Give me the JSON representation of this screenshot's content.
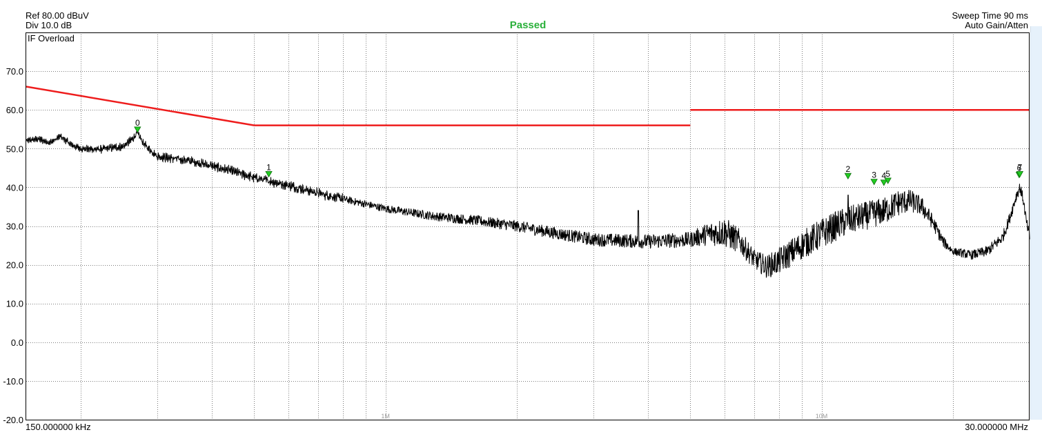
{
  "header": {
    "ref_level": "Ref 80.00 dBuV",
    "division": "Div 10.0 dB",
    "status": "Passed",
    "sweep_time": "Sweep Time 90 ms",
    "gain_mode": "Auto Gain/Atten",
    "overload_flag": "IF Overload"
  },
  "colors": {
    "trace": "#000000",
    "limit_line": "#ee1c1c",
    "marker_fill": "#22cc22",
    "status_pass": "#2ab03a",
    "grid": "#7a7a7a"
  },
  "chart_data": {
    "type": "line",
    "title": "",
    "xlabel": "",
    "ylabel": "",
    "x_scale": "log",
    "xlim": [
      150000,
      30000000
    ],
    "ylim": [
      -20,
      80
    ],
    "grid": true,
    "x_start_label": "150.000000 kHz",
    "x_stop_label": "30.000000 MHz",
    "x_decade_labels": [
      {
        "freq": 1000000,
        "label": "1M"
      },
      {
        "freq": 10000000,
        "label": "10M"
      }
    ],
    "y_ticks": [
      {
        "value": 70,
        "label": "70.0"
      },
      {
        "value": 60,
        "label": "60.0"
      },
      {
        "value": 50,
        "label": "50.0"
      },
      {
        "value": 40,
        "label": "40.0"
      },
      {
        "value": 30,
        "label": "30.0"
      },
      {
        "value": 20,
        "label": "20.0"
      },
      {
        "value": 10,
        "label": "10.0"
      },
      {
        "value": 0,
        "label": "0.0"
      },
      {
        "value": -10,
        "label": "-10.0"
      },
      {
        "value": -20,
        "label": "-20.0"
      }
    ],
    "limit_lines": [
      {
        "points": [
          [
            150000,
            66
          ],
          [
            500000,
            56
          ]
        ]
      },
      {
        "points": [
          [
            500000,
            56
          ],
          [
            5000000,
            56
          ]
        ]
      },
      {
        "points": [
          [
            5000000,
            60
          ],
          [
            30000000,
            60
          ]
        ]
      }
    ],
    "trace_envelope": [
      [
        150000,
        52
      ],
      [
        160000,
        52.5
      ],
      [
        170000,
        51.5
      ],
      [
        180000,
        53.2
      ],
      [
        190000,
        51
      ],
      [
        200000,
        50
      ],
      [
        220000,
        49.8
      ],
      [
        240000,
        50.3
      ],
      [
        250000,
        50.5
      ],
      [
        260000,
        52
      ],
      [
        270000,
        54
      ],
      [
        280000,
        51
      ],
      [
        300000,
        48
      ],
      [
        350000,
        47
      ],
      [
        400000,
        45.5
      ],
      [
        450000,
        44
      ],
      [
        500000,
        42.5
      ],
      [
        600000,
        40.5
      ],
      [
        700000,
        38.5
      ],
      [
        800000,
        37
      ],
      [
        1000000,
        34.5
      ],
      [
        1300000,
        32.5
      ],
      [
        1600000,
        31.5
      ],
      [
        2000000,
        30
      ],
      [
        2500000,
        28
      ],
      [
        3000000,
        26.5
      ],
      [
        4000000,
        26
      ],
      [
        5000000,
        26.5
      ],
      [
        5500000,
        28
      ],
      [
        6000000,
        28.5
      ],
      [
        6500000,
        26
      ],
      [
        7000000,
        21.5
      ],
      [
        7500000,
        19.5
      ],
      [
        8000000,
        21
      ],
      [
        9000000,
        25
      ],
      [
        10000000,
        28
      ],
      [
        11000000,
        30.5
      ],
      [
        12000000,
        32
      ],
      [
        13000000,
        33
      ],
      [
        14000000,
        34
      ],
      [
        15000000,
        36
      ],
      [
        16000000,
        36.5
      ],
      [
        17000000,
        35
      ],
      [
        18000000,
        31
      ],
      [
        19000000,
        26
      ],
      [
        20000000,
        23.5
      ],
      [
        22000000,
        22.5
      ],
      [
        24000000,
        23.5
      ],
      [
        26000000,
        27
      ],
      [
        27000000,
        32
      ],
      [
        28000000,
        38
      ],
      [
        28500000,
        40
      ],
      [
        29000000,
        37
      ],
      [
        29500000,
        31
      ],
      [
        30000000,
        27
      ]
    ],
    "trace_noise": [
      [
        150000,
        0.4
      ],
      [
        300000,
        0.8
      ],
      [
        1000000,
        1.0
      ],
      [
        2000000,
        1.5
      ],
      [
        5000000,
        2.0
      ],
      [
        6000000,
        4.0
      ],
      [
        7000000,
        2.5
      ],
      [
        8000000,
        3.5
      ],
      [
        10000000,
        4.0
      ],
      [
        15000000,
        3.5
      ],
      [
        18000000,
        2.0
      ],
      [
        20000000,
        1.0
      ],
      [
        25000000,
        1.5
      ],
      [
        30000000,
        1.5
      ]
    ],
    "spurs": [
      [
        3800000,
        34
      ],
      [
        11500000,
        38
      ],
      [
        13200000,
        36
      ]
    ],
    "markers": [
      {
        "label": "0",
        "freq": 270000,
        "level": 54
      },
      {
        "label": "1",
        "freq": 540000,
        "level": 42.5
      },
      {
        "label": "2",
        "freq": 11500000,
        "level": 42
      },
      {
        "label": "3",
        "freq": 13200000,
        "level": 40.5
      },
      {
        "label": "4",
        "freq": 13900000,
        "level": 40.3
      },
      {
        "label": "5",
        "freq": 14200000,
        "level": 40.8
      },
      {
        "label": "6",
        "freq": 28400000,
        "level": 42.3
      },
      {
        "label": "7",
        "freq": 28500000,
        "level": 42.5
      }
    ]
  }
}
